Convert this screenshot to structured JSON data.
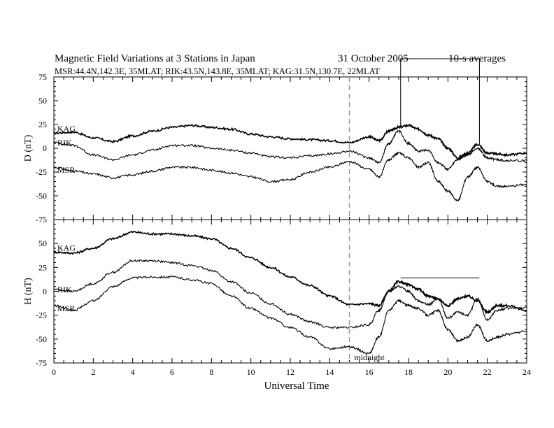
{
  "header": {
    "title": "Magnetic Field Variations at 3 Stations in Japan",
    "date": "31 October 2005",
    "averaging": "10-s averages",
    "stations_line": "MSR:44.4N,142.3E, 35MLAT;  RIK:43.5N,143.8E, 35MLAT;  KAG:31.5N,130.7E, 22MLAT"
  },
  "chart_data": [
    {
      "type": "line",
      "panel": "D",
      "ylabel": "D (nT)",
      "xlim": [
        0,
        24
      ],
      "ylim": [
        -75,
        75
      ],
      "yticks": [
        -75,
        -50,
        -25,
        0,
        25,
        50,
        75
      ],
      "x": [
        0,
        1,
        2,
        3,
        4,
        5,
        6,
        7,
        8,
        9,
        10,
        11,
        12,
        13,
        14,
        15,
        16,
        16.5,
        17,
        17.5,
        18,
        18.5,
        19,
        19.5,
        20,
        20.5,
        21,
        21.5,
        22,
        22.5,
        23,
        24
      ],
      "series": [
        {
          "name": "KAG",
          "values": [
            16,
            17,
            11,
            7,
            13,
            18,
            22,
            24,
            22,
            20,
            15,
            12,
            10,
            9,
            8,
            6,
            12,
            8,
            18,
            22,
            24,
            20,
            14,
            10,
            0,
            -10,
            -5,
            4,
            -5,
            -6,
            -7,
            -5
          ]
        },
        {
          "name": "RIK",
          "values": [
            6,
            3,
            -7,
            -12,
            -7,
            -2,
            3,
            3,
            0,
            -2,
            -5,
            -9,
            -10,
            -8,
            -6,
            -3,
            -10,
            -15,
            5,
            18,
            5,
            -3,
            -2,
            -15,
            -22,
            -12,
            -7,
            0,
            -10,
            -12,
            -13,
            -13
          ]
        },
        {
          "name": "MSR",
          "values": [
            -20,
            -24,
            -27,
            -31,
            -28,
            -24,
            -20,
            -20,
            -23,
            -26,
            -30,
            -35,
            -33,
            -25,
            -20,
            -14,
            -22,
            -30,
            -12,
            -5,
            -10,
            -20,
            -15,
            -35,
            -45,
            -55,
            -30,
            -20,
            -35,
            -40,
            -40,
            -38
          ]
        }
      ],
      "annotations": [
        {
          "type": "bracket",
          "x_start": 17.6,
          "x_end": 21.6
        },
        {
          "type": "vline",
          "x": 15
        }
      ]
    },
    {
      "type": "line",
      "panel": "H",
      "ylabel": "H (nT)",
      "xlabel": "Universal Time",
      "xlim": [
        0,
        24
      ],
      "ylim": [
        -75,
        75
      ],
      "yticks": [
        -75,
        -50,
        -25,
        0,
        25,
        50,
        75
      ],
      "xticks": [
        0,
        2,
        4,
        6,
        8,
        10,
        12,
        14,
        16,
        18,
        20,
        22,
        24
      ],
      "x": [
        0,
        1,
        2,
        3,
        4,
        5,
        6,
        7,
        8,
        9,
        10,
        11,
        12,
        13,
        14,
        15,
        16,
        16.5,
        17,
        17.5,
        18,
        18.5,
        19,
        19.5,
        20,
        20.5,
        21,
        21.5,
        22,
        22.5,
        23,
        24
      ],
      "series": [
        {
          "name": "KAG",
          "values": [
            41,
            40,
            45,
            55,
            62,
            60,
            60,
            58,
            55,
            45,
            35,
            25,
            15,
            6,
            -5,
            -14,
            -13,
            -15,
            0,
            10,
            7,
            2,
            -5,
            -8,
            -15,
            -8,
            -5,
            -10,
            -22,
            -15,
            -15,
            -20
          ]
        },
        {
          "name": "RIK",
          "values": [
            2,
            0,
            8,
            20,
            32,
            32,
            30,
            27,
            22,
            10,
            -2,
            -13,
            -24,
            -32,
            -38,
            -38,
            -35,
            -20,
            0,
            5,
            0,
            -10,
            -14,
            -8,
            -28,
            -22,
            -25,
            -8,
            -30,
            -20,
            -18,
            -17
          ]
        },
        {
          "name": "MSR",
          "values": [
            -15,
            -20,
            -10,
            5,
            14,
            15,
            15,
            12,
            8,
            -5,
            -18,
            -28,
            -38,
            -48,
            -60,
            -58,
            -65,
            -48,
            -20,
            -10,
            -15,
            -18,
            -25,
            -20,
            -40,
            -52,
            -48,
            -35,
            -52,
            -48,
            -45,
            -42
          ]
        }
      ],
      "annotations": [
        {
          "type": "text",
          "text": "midnight",
          "x": 15.1
        },
        {
          "type": "bracket",
          "x_start": 17.6,
          "x_end": 21.6,
          "level": 14
        },
        {
          "type": "vline",
          "x": 15
        }
      ]
    }
  ]
}
